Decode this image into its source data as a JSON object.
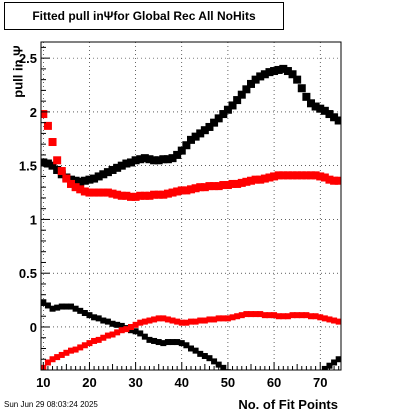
{
  "header": {
    "title_prefix": "Fitted pull in",
    "title_symbol": "Ψ",
    "title_suffix": "for Global Rec All NoHits"
  },
  "footer": {
    "date_stamp": "Sun Jun 29 08:03:24 2025"
  },
  "chart_data": {
    "type": "scatter",
    "title": "Fitted pull in Ψ for Global Rec All NoHits",
    "xlabel": "No. of Fit Points",
    "ylabel": "pull in Ψ",
    "xlim": [
      9.5,
      74.5
    ],
    "ylim": [
      -0.4,
      2.65
    ],
    "xticks": [
      10,
      20,
      30,
      40,
      50,
      60,
      70
    ],
    "yticks": [
      0,
      0.5,
      1,
      1.5,
      2,
      2.5
    ],
    "ytick_labels": [
      "0",
      "0.5",
      "1",
      "1.5",
      "2",
      "2.5"
    ],
    "grid": true,
    "x": [
      10,
      11,
      12,
      13,
      14,
      15,
      16,
      17,
      18,
      19,
      20,
      21,
      22,
      23,
      24,
      25,
      26,
      27,
      28,
      29,
      30,
      31,
      32,
      33,
      34,
      35,
      36,
      37,
      38,
      39,
      40,
      41,
      42,
      43,
      44,
      45,
      46,
      47,
      48,
      49,
      50,
      51,
      52,
      53,
      54,
      55,
      56,
      57,
      58,
      59,
      60,
      61,
      62,
      63,
      64,
      65,
      66,
      67,
      68,
      69,
      70,
      71,
      72,
      73,
      74
    ],
    "series": [
      {
        "color": "#000000",
        "kind": "mean",
        "values": [
          1.53,
          1.52,
          1.5,
          1.46,
          1.42,
          1.39,
          1.37,
          1.36,
          1.35,
          1.36,
          1.37,
          1.38,
          1.4,
          1.42,
          1.44,
          1.46,
          1.48,
          1.5,
          1.52,
          1.53,
          1.55,
          1.56,
          1.57,
          1.56,
          1.55,
          1.55,
          1.56,
          1.56,
          1.57,
          1.6,
          1.64,
          1.69,
          1.74,
          1.77,
          1.8,
          1.83,
          1.86,
          1.9,
          1.94,
          1.98,
          2.02,
          2.06,
          2.11,
          2.16,
          2.21,
          2.26,
          2.3,
          2.33,
          2.35,
          2.37,
          2.38,
          2.39,
          2.4,
          2.38,
          2.35,
          2.3,
          2.22,
          2.14,
          2.08,
          2.05,
          2.03,
          2.01,
          1.98,
          1.95,
          1.92
        ]
      },
      {
        "color": "#ff0000",
        "kind": "mean",
        "values": [
          1.98,
          1.87,
          1.72,
          1.55,
          1.45,
          1.38,
          1.33,
          1.3,
          1.28,
          1.26,
          1.25,
          1.25,
          1.25,
          1.25,
          1.25,
          1.24,
          1.23,
          1.22,
          1.22,
          1.21,
          1.21,
          1.22,
          1.22,
          1.22,
          1.23,
          1.23,
          1.23,
          1.24,
          1.25,
          1.26,
          1.27,
          1.27,
          1.28,
          1.29,
          1.3,
          1.3,
          1.31,
          1.31,
          1.31,
          1.32,
          1.32,
          1.33,
          1.33,
          1.34,
          1.35,
          1.36,
          1.37,
          1.37,
          1.38,
          1.39,
          1.4,
          1.41,
          1.41,
          1.41,
          1.41,
          1.41,
          1.41,
          1.41,
          1.41,
          1.41,
          1.4,
          1.39,
          1.37,
          1.36,
          1.36
        ]
      },
      {
        "color": "#000000",
        "kind": "sigma",
        "values": [
          0.23,
          0.2,
          0.17,
          0.18,
          0.19,
          0.19,
          0.19,
          0.17,
          0.15,
          0.13,
          0.11,
          0.09,
          0.08,
          0.06,
          0.05,
          0.03,
          0.02,
          0.01,
          -0.01,
          -0.03,
          -0.04,
          -0.06,
          -0.09,
          -0.12,
          -0.13,
          -0.14,
          -0.15,
          -0.14,
          -0.14,
          -0.14,
          -0.15,
          -0.17,
          -0.2,
          -0.22,
          -0.25,
          -0.27,
          -0.29,
          -0.32,
          -0.35,
          -0.38,
          -0.42,
          null,
          null,
          null,
          null,
          null,
          null,
          null,
          null,
          null,
          null,
          null,
          null,
          null,
          null,
          null,
          null,
          null,
          null,
          null,
          -0.45,
          -0.39,
          -0.36,
          -0.33,
          -0.3
        ]
      },
      {
        "color": "#ff0000",
        "kind": "sigma",
        "values": [
          -0.38,
          -0.33,
          -0.3,
          -0.28,
          -0.26,
          -0.24,
          -0.22,
          -0.21,
          -0.19,
          -0.17,
          -0.15,
          -0.13,
          -0.12,
          -0.1,
          -0.08,
          -0.07,
          -0.05,
          -0.03,
          -0.02,
          0,
          0.02,
          0.04,
          0.05,
          0.06,
          0.07,
          0.08,
          0.08,
          0.07,
          0.06,
          0.05,
          0.04,
          0.04,
          0.05,
          0.05,
          0.06,
          0.06,
          0.07,
          0.07,
          0.08,
          0.08,
          0.08,
          0.09,
          0.1,
          0.11,
          0.12,
          0.12,
          0.12,
          0.12,
          0.11,
          0.11,
          0.11,
          0.1,
          0.1,
          0.1,
          0.11,
          0.11,
          0.11,
          0.11,
          0.1,
          0.1,
          0.09,
          0.08,
          0.07,
          0.06,
          0.05
        ]
      }
    ]
  }
}
